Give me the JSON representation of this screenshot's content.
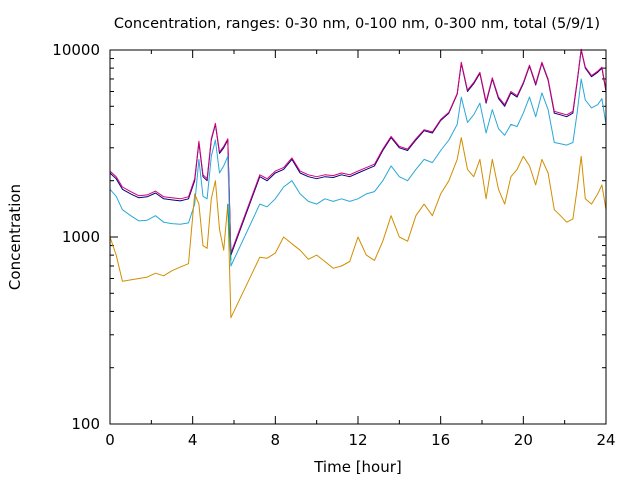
{
  "chart_data": {
    "type": "line",
    "title": "Concentration, ranges: 0-30 nm, 0-100 nm, 0-300 nm, total (5/9/1)",
    "xlabel": "Time [hour]",
    "ylabel": "Concentration",
    "xlim": [
      0,
      24
    ],
    "ylim": [
      100,
      10000
    ],
    "y_scale": "log",
    "grid": false,
    "legend": "none",
    "x_ticks": [
      0,
      4,
      8,
      12,
      16,
      20,
      24
    ],
    "y_ticks": [
      100,
      1000,
      10000
    ],
    "x_tick_labels": [
      "0",
      "4",
      "8",
      "12",
      "16",
      "20",
      "24"
    ],
    "y_tick_labels": [
      "100",
      "1000",
      "10000"
    ],
    "x": [
      0,
      0.3,
      0.6,
      1.0,
      1.4,
      1.8,
      2.2,
      2.6,
      3.0,
      3.4,
      3.8,
      4.1,
      4.3,
      4.5,
      4.7,
      4.9,
      5.1,
      5.3,
      5.5,
      5.7,
      5.85,
      7.25,
      7.6,
      8.0,
      8.4,
      8.8,
      9.2,
      9.6,
      10.0,
      10.4,
      10.8,
      11.2,
      11.6,
      12.0,
      12.4,
      12.8,
      13.2,
      13.6,
      14.0,
      14.4,
      14.8,
      15.2,
      15.6,
      16.0,
      16.4,
      16.8,
      17.0,
      17.3,
      17.6,
      17.9,
      18.2,
      18.5,
      18.8,
      19.1,
      19.4,
      19.7,
      20.0,
      20.3,
      20.6,
      20.9,
      21.2,
      21.5,
      21.8,
      22.1,
      22.4,
      22.6,
      22.8,
      23.0,
      23.3,
      23.6,
      23.8,
      24.0
    ],
    "series": [
      {
        "color": "#000080",
        "values": [
          2200,
          2050,
          1800,
          1700,
          1620,
          1640,
          1720,
          1600,
          1580,
          1560,
          1600,
          2000,
          3200,
          2100,
          2000,
          3300,
          4000,
          2800,
          3000,
          3300,
          800,
          2100,
          2000,
          2200,
          2300,
          2600,
          2200,
          2100,
          2050,
          2100,
          2080,
          2150,
          2100,
          2200,
          2300,
          2400,
          2900,
          3400,
          3000,
          2900,
          3300,
          3700,
          3600,
          4200,
          4600,
          5800,
          8500,
          6000,
          6600,
          7500,
          5200,
          7000,
          5500,
          5000,
          5900,
          5600,
          6600,
          8200,
          6500,
          8500,
          6900,
          4600,
          4500,
          4400,
          4600,
          6700,
          10000,
          8000,
          7200,
          7600,
          8000,
          6000
        ]
      },
      {
        "color": "#d60077",
        "values": [
          2250,
          2100,
          1850,
          1750,
          1660,
          1680,
          1760,
          1640,
          1620,
          1600,
          1640,
          2050,
          3250,
          2150,
          2050,
          3350,
          4050,
          2850,
          3050,
          3350,
          820,
          2150,
          2050,
          2250,
          2350,
          2650,
          2250,
          2150,
          2100,
          2150,
          2130,
          2200,
          2150,
          2250,
          2350,
          2450,
          2950,
          3450,
          3050,
          2950,
          3350,
          3750,
          3650,
          4250,
          4650,
          5850,
          8600,
          6100,
          6700,
          7600,
          5300,
          7100,
          5600,
          5100,
          6000,
          5700,
          6700,
          8300,
          6600,
          8600,
          7000,
          4700,
          4600,
          4500,
          4700,
          6800,
          10100,
          8100,
          7300,
          7700,
          8100,
          6100
        ]
      },
      {
        "color": "#2aa7d7",
        "values": [
          1800,
          1650,
          1400,
          1300,
          1220,
          1230,
          1300,
          1200,
          1180,
          1170,
          1190,
          1500,
          2600,
          1650,
          1600,
          2700,
          3300,
          2200,
          2400,
          2700,
          700,
          1500,
          1450,
          1600,
          1850,
          2000,
          1700,
          1550,
          1500,
          1600,
          1550,
          1600,
          1550,
          1600,
          1700,
          1750,
          2000,
          2400,
          2100,
          2000,
          2300,
          2600,
          2500,
          2900,
          3300,
          4000,
          5600,
          4100,
          4500,
          5200,
          3600,
          4800,
          3800,
          3500,
          4000,
          3900,
          4600,
          5600,
          4400,
          5900,
          4800,
          3200,
          3150,
          3100,
          3200,
          4600,
          7000,
          5400,
          4900,
          5100,
          5500,
          4000
        ]
      },
      {
        "color": "#d18e00",
        "values": [
          1000,
          800,
          580,
          590,
          600,
          610,
          640,
          620,
          660,
          690,
          720,
          1700,
          1500,
          900,
          870,
          1600,
          2000,
          1100,
          850,
          1500,
          370,
          780,
          770,
          820,
          1000,
          920,
          850,
          760,
          800,
          740,
          680,
          700,
          740,
          1000,
          800,
          750,
          950,
          1300,
          1000,
          950,
          1300,
          1500,
          1300,
          1700,
          2000,
          2600,
          3400,
          2300,
          2100,
          2600,
          1600,
          2600,
          1800,
          1500,
          2100,
          2300,
          2700,
          2400,
          1900,
          2600,
          2200,
          1400,
          1300,
          1200,
          1250,
          1800,
          2700,
          1600,
          1500,
          1700,
          1900,
          1400
        ]
      },
      {
        "color": "#009e73",
        "values": [
          null,
          null,
          null,
          null,
          null,
          null,
          null,
          null,
          null,
          null,
          null,
          null,
          null,
          null,
          null,
          null,
          null,
          null,
          null,
          1500,
          750,
          null,
          null,
          null,
          null,
          null,
          null,
          null,
          null,
          null,
          null,
          null,
          null,
          null,
          null,
          null,
          null,
          null,
          null,
          null,
          null,
          null,
          null,
          null,
          null,
          null,
          null,
          null,
          null,
          null,
          null,
          null,
          null,
          null,
          null,
          null,
          null,
          null,
          null,
          null,
          null,
          null,
          null,
          null,
          null,
          null,
          null,
          null,
          null,
          null,
          null,
          null
        ]
      }
    ]
  }
}
